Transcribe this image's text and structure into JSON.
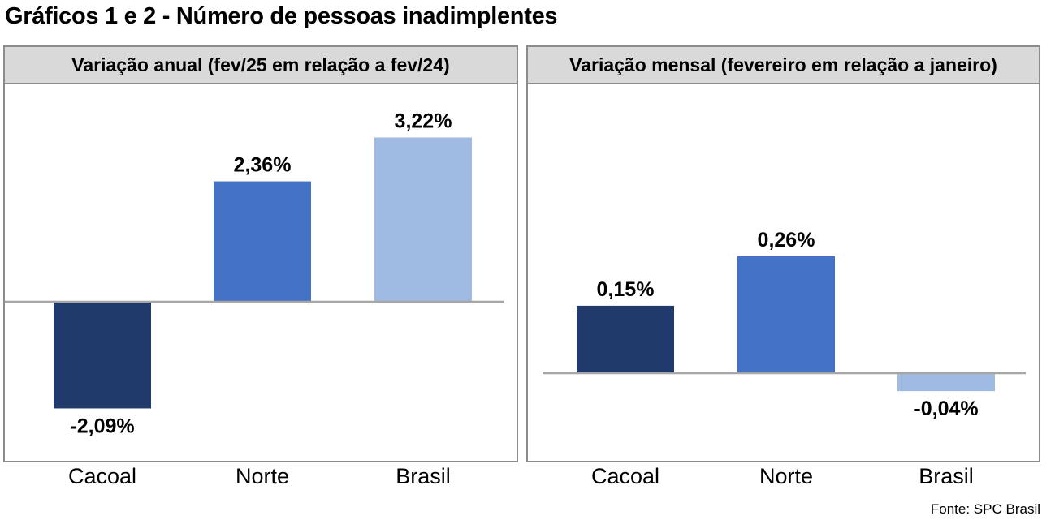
{
  "title": "Gráficos 1 e 2 - Número de pessoas inadimplentes",
  "source": "Fonte: SPC Brasil",
  "colors": {
    "Cacoal": "#1f3a6b",
    "Norte": "#4472c4",
    "Brasil": "#a0bbe3",
    "baseline": "#a6a6a6"
  },
  "chart_data": [
    {
      "type": "bar",
      "title": "Variação anual (fev/25 em relação a fev/24)",
      "categories": [
        "Cacoal",
        "Norte",
        "Brasil"
      ],
      "values": [
        -2.09,
        2.36,
        3.22
      ],
      "value_labels": [
        "-2,09%",
        "2,36%",
        "3,22%"
      ],
      "unit": "%",
      "grid": false,
      "legend": "none"
    },
    {
      "type": "bar",
      "title": "Variação mensal (fevereiro em relação a janeiro)",
      "categories": [
        "Cacoal",
        "Norte",
        "Brasil"
      ],
      "values": [
        0.15,
        0.26,
        -0.04
      ],
      "value_labels": [
        "0,15%",
        "0,26%",
        "-0,04%"
      ],
      "unit": "%",
      "grid": false,
      "legend": "none"
    }
  ]
}
